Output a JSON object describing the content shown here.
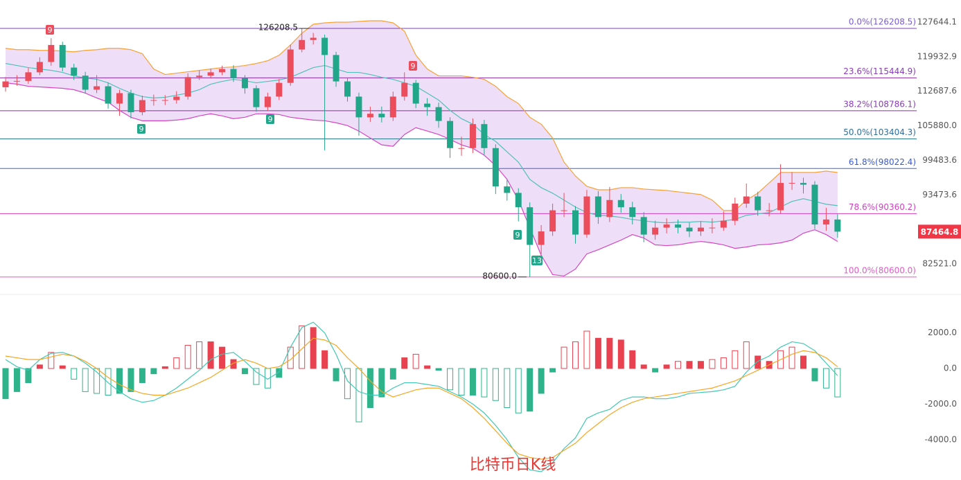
{
  "chart_data": [
    {
      "type": "candlestick",
      "log_scale": true,
      "up_color": "#eb4d5c",
      "down_color": "#22a68a",
      "ylim": [
        78592,
        132853
      ],
      "yticks": [
        127644.1,
        119932.9,
        112687.6,
        {
          "value": 105880,
          "label": "105880.0"
        },
        99483.6,
        93473.6,
        {
          "value": 82521,
          "label": "82521.0"
        }
      ],
      "open": [
        113500,
        114700,
        114800,
        116600,
        118800,
        122500,
        117600,
        115900,
        113000,
        113700,
        110200,
        112300,
        108500,
        110900,
        110900,
        110900,
        111600,
        115600,
        115900,
        116600,
        117300,
        115400,
        113300,
        109500,
        111600,
        114400,
        121500,
        123600,
        124100,
        120300,
        114700,
        111600,
        107500,
        108200,
        107500,
        111600,
        114400,
        110200,
        109500,
        106800,
        101700,
        101700,
        106200,
        101700,
        94900,
        93800,
        91400,
        85400,
        87500,
        90900,
        90900,
        87000,
        93200,
        89800,
        92600,
        91400,
        89800,
        87000,
        88100,
        88600,
        88100,
        87500,
        88100,
        88100,
        89200,
        92000,
        93200,
        90900,
        90900,
        95500,
        95500,
        95200,
        88600,
        89400
      ],
      "high": [
        115600,
        116000,
        117500,
        119800,
        124000,
        123200,
        118400,
        116700,
        116000,
        114500,
        113000,
        113000,
        111800,
        112000,
        111900,
        112700,
        116400,
        117000,
        117400,
        118000,
        118100,
        116000,
        113900,
        112400,
        115200,
        122600,
        126208.5,
        125200,
        124800,
        121000,
        115500,
        112400,
        109600,
        109600,
        112600,
        116600,
        115000,
        111300,
        110400,
        107500,
        103800,
        107300,
        107000,
        102400,
        96000,
        94600,
        92200,
        88500,
        92000,
        93800,
        91600,
        94300,
        94100,
        94800,
        93600,
        92300,
        90600,
        89200,
        89600,
        89400,
        88900,
        89100,
        89600,
        90700,
        93000,
        95400,
        94000,
        92100,
        98800,
        97400,
        96400,
        95800,
        91300,
        90300
      ],
      "low": [
        112600,
        113800,
        114200,
        116000,
        118000,
        116800,
        115000,
        112200,
        112300,
        109200,
        107800,
        107300,
        107900,
        109800,
        109900,
        110200,
        111000,
        115000,
        115300,
        116000,
        114600,
        112200,
        108600,
        108800,
        110900,
        113800,
        120900,
        122600,
        101300,
        113600,
        110600,
        104000,
        106600,
        106500,
        106800,
        110800,
        109300,
        107800,
        105500,
        99900,
        100300,
        100800,
        100500,
        93600,
        92500,
        89100,
        80600,
        84000,
        86800,
        89800,
        85600,
        86500,
        88700,
        89000,
        90500,
        88600,
        85800,
        86200,
        87200,
        87200,
        86600,
        86800,
        87200,
        87600,
        88500,
        91300,
        90000,
        89900,
        90400,
        94300,
        93700,
        87900,
        87600,
        86500
      ],
      "close": [
        114700,
        114800,
        116600,
        118800,
        122500,
        117600,
        115900,
        113000,
        113700,
        110200,
        112300,
        108500,
        110900,
        110900,
        110900,
        111600,
        115600,
        115900,
        116600,
        117300,
        115400,
        113300,
        109500,
        111600,
        114400,
        121500,
        123600,
        124100,
        120300,
        114700,
        111600,
        107500,
        108200,
        107500,
        111600,
        114400,
        110200,
        109500,
        106800,
        101700,
        101700,
        106200,
        101700,
        94900,
        93800,
        91400,
        85400,
        87500,
        90900,
        90900,
        87000,
        93200,
        89800,
        92600,
        91400,
        89800,
        87000,
        88100,
        88600,
        88100,
        87500,
        88100,
        88100,
        89200,
        92000,
        93200,
        90900,
        90900,
        95500,
        95500,
        95200,
        88600,
        89400,
        87464.8
      ],
      "bands": {
        "fill": "#e9d3f5",
        "upper": {
          "color": "#f5a235",
          "values": [
            121760,
            121460,
            121460,
            121300,
            121300,
            121150,
            121000,
            121300,
            121460,
            121760,
            121760,
            121460,
            120560,
            117300,
            116140,
            116430,
            116720,
            117010,
            117300,
            117600,
            117750,
            118040,
            118480,
            119070,
            120260,
            122500,
            125110,
            127166,
            127485,
            127644,
            127644,
            127804,
            127964,
            127964,
            127485,
            125587,
            120260,
            117300,
            115850,
            115850,
            115850,
            115560,
            115130,
            113700,
            111600,
            110220,
            107510,
            106180,
            103570,
            99150,
            96720,
            94920,
            94330,
            94330,
            94690,
            94690,
            94450,
            94330,
            94210,
            93980,
            93750,
            93520,
            92590,
            90870,
            90870,
            92590,
            93750,
            95520,
            97320,
            97320,
            97320,
            97320,
            97560,
            97320
          ]
        },
        "middle": {
          "color": "#4fc1b8",
          "values": [
            118480,
            118040,
            117600,
            117300,
            117010,
            116580,
            115850,
            115420,
            115130,
            114410,
            113280,
            112300,
            111600,
            111320,
            111460,
            111880,
            112300,
            113000,
            114130,
            114700,
            115130,
            114840,
            114410,
            114700,
            114990,
            115560,
            116580,
            117600,
            118040,
            117300,
            116580,
            116580,
            116140,
            115560,
            115130,
            114410,
            113700,
            112300,
            110900,
            108860,
            107240,
            106180,
            104220,
            102930,
            101020,
            99150,
            96110,
            94690,
            93750,
            92590,
            91440,
            90530,
            90080,
            89970,
            89750,
            89410,
            89190,
            88970,
            88860,
            88970,
            88970,
            89080,
            88970,
            89190,
            89410,
            90080,
            90310,
            90530,
            91440,
            92360,
            92820,
            92360,
            91900,
            91670
          ]
        },
        "lower": {
          "color": "#d646c4",
          "values": [
            114410,
            114130,
            113700,
            113560,
            113420,
            113280,
            113000,
            112300,
            111320,
            110500,
            108860,
            107510,
            106840,
            106840,
            106840,
            106970,
            107240,
            107780,
            108190,
            107780,
            107240,
            107510,
            108190,
            108190,
            108050,
            107510,
            107240,
            106970,
            106840,
            106450,
            105910,
            104870,
            103570,
            102290,
            102030,
            104220,
            105520,
            104870,
            104220,
            103310,
            102290,
            101660,
            100390,
            98540,
            96110,
            92590,
            88090,
            83810,
            80940,
            80740,
            81750,
            84020,
            84650,
            85400,
            86140,
            87000,
            86460,
            85400,
            85290,
            85400,
            85710,
            85930,
            85710,
            85400,
            84860,
            85070,
            85400,
            85500,
            85710,
            86140,
            87220,
            87760,
            87000,
            85930
          ]
        }
      },
      "fib_levels": [
        {
          "label": "0.0%(126208.5)",
          "value": 126208.5,
          "color": "#7d3fb8",
          "text_color": "#7a5bd6"
        },
        {
          "label": "23.6%(115444.9)",
          "value": 115444.9,
          "color": "#8e2ba8",
          "text_color": "#8a3cc0"
        },
        {
          "label": "38.2%(108786.1)",
          "value": 108786.1,
          "color": "#8e2ba8",
          "text_color": "#8a3cc0"
        },
        {
          "label": "50.0%(103404.3)",
          "value": 103404.3,
          "color": "#2a7c8a",
          "text_color": "#2f6fa0"
        },
        {
          "label": "61.8%(98022.4)",
          "value": 98022.4,
          "color": "#3d63d8",
          "text_color": "#3a5bd0"
        },
        {
          "label": "78.6%(90360.2)",
          "value": 90360.2,
          "color": "#d43dc0",
          "text_color": "#d23fc7"
        },
        {
          "label": "100.0%(80600.0)",
          "value": 80600,
          "color": "#e059c7",
          "text_color": "#e25bc9"
        }
      ],
      "high_mark": 126208.5,
      "low_mark": {
        "value": 80600,
        "label": "80600.0"
      },
      "last_price": 87464.8,
      "last_price_color": "#f23645",
      "td_marks": [
        {
          "label": "9"
        },
        {
          "label": "9"
        },
        {
          "label": "9"
        },
        {
          "label": "9"
        },
        {
          "label": "9"
        },
        {
          "label": "13"
        }
      ],
      "title": "比特币日K线",
      "title_color": "#e53935"
    },
    {
      "type": "macd",
      "up_color": "#e8414f",
      "down_color": "#2fb38a",
      "ylim": [
        -6150,
        3580
      ],
      "yticks": [
        {
          "value": 2000,
          "label": "2000.0"
        },
        {
          "value": 0,
          "label": "0.0"
        },
        {
          "value": -2000,
          "label": "-2000.0"
        },
        {
          "value": -4000,
          "label": "-4000.0"
        }
      ],
      "values": [
        -1700,
        -1300,
        -800,
        200,
        900,
        150,
        -600,
        -1300,
        -1400,
        -1500,
        -1400,
        -1300,
        -800,
        -300,
        100,
        600,
        1300,
        1500,
        1500,
        1200,
        500,
        -300,
        -900,
        -1100,
        -500,
        1200,
        2400,
        2300,
        1000,
        -700,
        -1700,
        -3000,
        -2200,
        -1600,
        -600,
        600,
        800,
        150,
        -100,
        -1200,
        -1500,
        -1500,
        -1600,
        -1800,
        -2200,
        -2500,
        -2400,
        -1400,
        -200,
        1200,
        1500,
        2100,
        1700,
        1700,
        1600,
        1000,
        200,
        -200,
        200,
        400,
        400,
        400,
        500,
        600,
        1000,
        1500,
        700,
        400,
        1000,
        1200,
        700,
        -700,
        -1100,
        -1600
      ],
      "lines": [
        {
          "color": "#3fc8b4",
          "values": [
            500,
            100,
            -100,
            500,
            850,
            900,
            700,
            300,
            -200,
            -800,
            -1300,
            -1700,
            -1900,
            -1800,
            -1500,
            -1100,
            -600,
            -100,
            500,
            800,
            900,
            400,
            -200,
            -600,
            -200,
            1200,
            2300,
            2600,
            2000,
            800,
            -700,
            -1300,
            -1500,
            -1500,
            -1100,
            -800,
            -800,
            -900,
            -1000,
            -1300,
            -1600,
            -2000,
            -2500,
            -3200,
            -4000,
            -5000,
            -5700,
            -5800,
            -5300,
            -4500,
            -3900,
            -2800,
            -2500,
            -2300,
            -1800,
            -1600,
            -1600,
            -1700,
            -1700,
            -1600,
            -1400,
            -1350,
            -1300,
            -1200,
            -1000,
            -200,
            400,
            700,
            1200,
            1500,
            1400,
            1000,
            300,
            -400
          ]
        },
        {
          "color": "#f5a623",
          "values": [
            700,
            600,
            500,
            500,
            650,
            800,
            700,
            400,
            0,
            -500,
            -900,
            -1200,
            -1400,
            -1500,
            -1500,
            -1300,
            -1100,
            -800,
            -500,
            -100,
            300,
            500,
            300,
            0,
            100,
            500,
            1100,
            1700,
            1600,
            1300,
            600,
            0,
            -700,
            -1300,
            -1600,
            -1400,
            -1200,
            -1100,
            -1100,
            -1400,
            -1700,
            -2200,
            -2800,
            -3500,
            -4200,
            -4800,
            -5000,
            -5100,
            -5000,
            -4600,
            -4200,
            -3600,
            -3100,
            -2600,
            -2200,
            -1900,
            -1700,
            -1600,
            -1500,
            -1400,
            -1300,
            -1200,
            -1100,
            -900,
            -700,
            -400,
            -100,
            200,
            500,
            800,
            1000,
            900,
            600,
            100
          ]
        }
      ]
    }
  ]
}
